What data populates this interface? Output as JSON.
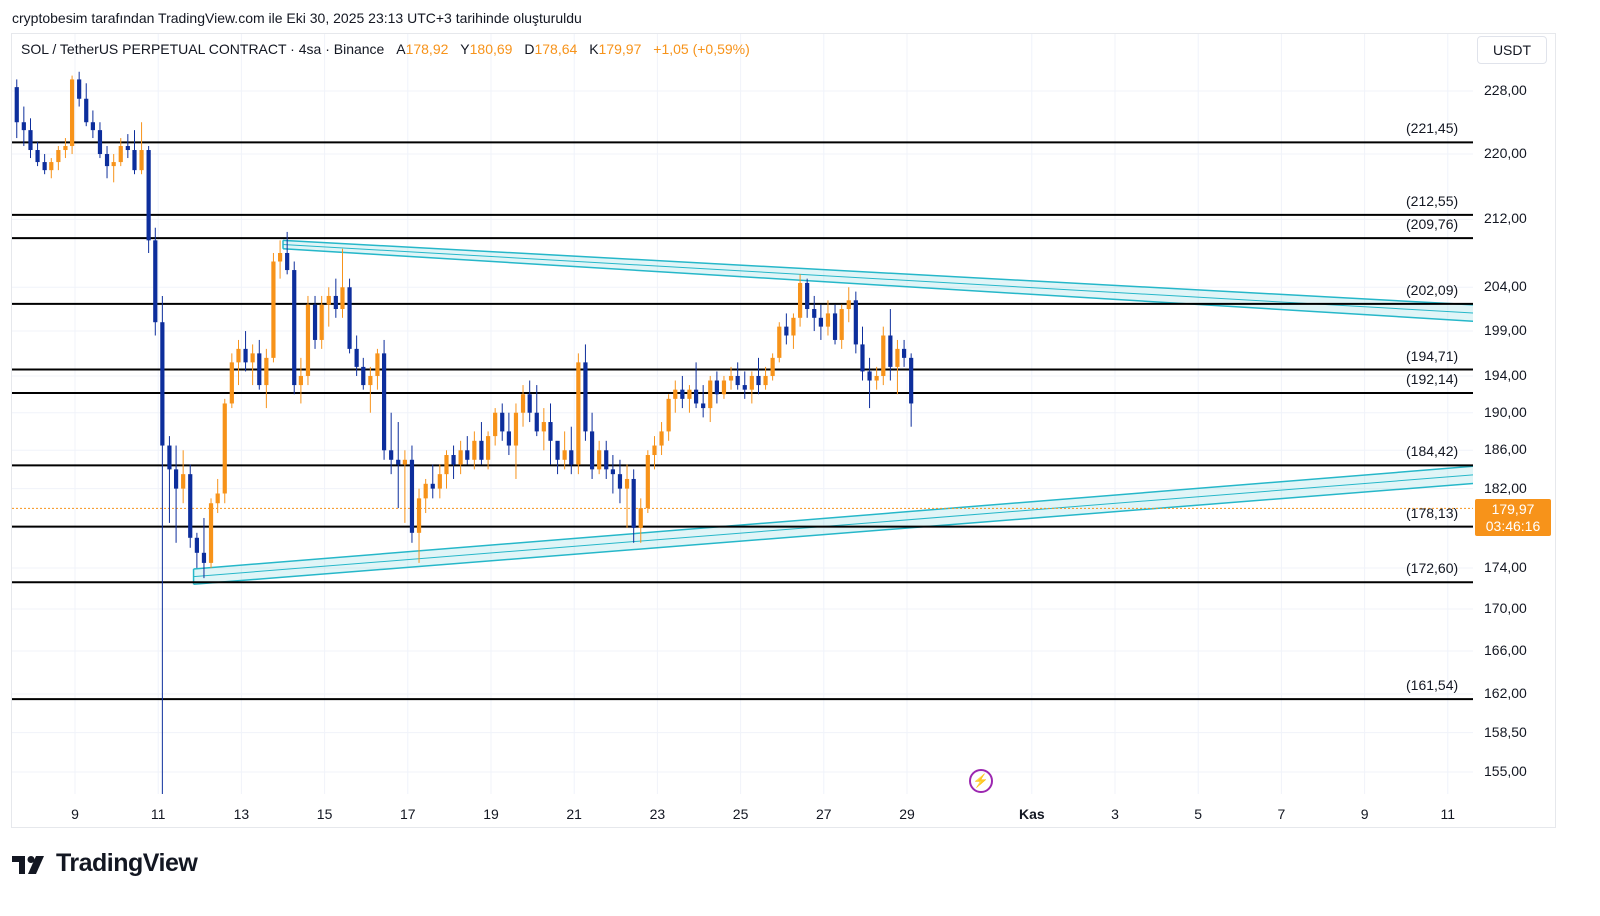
{
  "caption": "cryptobesim tarafından TradingView.com ile Eki 30, 2025 23:13 UTC+3 tarihinde oluşturuldu",
  "legend": {
    "symbol": "SOL / TetherUS PERPETUAL CONTRACT · 4sa · Binance",
    "open_key": "A",
    "open": "178,92",
    "high_key": "Y",
    "high": "180,69",
    "low_key": "D",
    "low": "178,64",
    "close_key": "K",
    "close": "179,97",
    "change": "+1,05 (+0,59%)"
  },
  "currency": "USDT",
  "brand": "TradingView",
  "colors": {
    "up": "#f7931a",
    "down": "#0d2e9c",
    "channel": "#26b7c9",
    "level": "#000000",
    "price": "#f7931a"
  },
  "icons": {
    "event": "lightning-icon",
    "logo": "tradingview-logo-icon"
  },
  "chart_data": {
    "type": "candlestick",
    "symbol": "SOL / TetherUS PERPETUAL CONTRACT",
    "interval": "4sa",
    "exchange": "Binance",
    "y_scale": "log",
    "ylim": [
      152.5,
      233.0
    ],
    "xlim": [
      7.5,
      43.7
    ],
    "y_ticks": [
      "228,00",
      "220,00",
      "212,00",
      "204,00",
      "199,00",
      "194,00",
      "190,00",
      "186,00",
      "182,00",
      "178,00",
      "174,00",
      "170,00",
      "166,00",
      "162,00",
      "158,50",
      "155,00"
    ],
    "y_tick_values": [
      228,
      220,
      212,
      204,
      199,
      194,
      190,
      186,
      182,
      178,
      174,
      170,
      166,
      162,
      158.5,
      155
    ],
    "x_ticks": [
      {
        "label": "9",
        "day": 9
      },
      {
        "label": "11",
        "day": 11
      },
      {
        "label": "13",
        "day": 13
      },
      {
        "label": "15",
        "day": 15
      },
      {
        "label": "17",
        "day": 17
      },
      {
        "label": "19",
        "day": 19
      },
      {
        "label": "21",
        "day": 21
      },
      {
        "label": "23",
        "day": 23
      },
      {
        "label": "25",
        "day": 25
      },
      {
        "label": "27",
        "day": 27
      },
      {
        "label": "29",
        "day": 29
      },
      {
        "label": "Kas",
        "day": 32,
        "bold": true
      },
      {
        "label": "3",
        "day": 34
      },
      {
        "label": "5",
        "day": 36
      },
      {
        "label": "7",
        "day": 38
      },
      {
        "label": "9",
        "day": 40
      },
      {
        "label": "11",
        "day": 42
      }
    ],
    "levels": [
      {
        "label": "(221,45)",
        "value": 221.45
      },
      {
        "label": "(212,55)",
        "value": 212.55
      },
      {
        "label": "(209,76)",
        "value": 209.76
      },
      {
        "label": "(202,09)",
        "value": 202.09
      },
      {
        "label": "(194,71)",
        "value": 194.71
      },
      {
        "label": "(192,14)",
        "value": 192.14
      },
      {
        "label": "(184,42)",
        "value": 184.42
      },
      {
        "label": "(178,13)",
        "value": 178.13
      },
      {
        "label": "(172,60)",
        "value": 172.6
      },
      {
        "label": "(161,54)",
        "value": 161.54
      }
    ],
    "upper_channel": {
      "upper": [
        [
          14.0,
          209.5
        ],
        [
          43.7,
          201.7
        ]
      ],
      "lower": [
        [
          14.0,
          208.5
        ],
        [
          43.7,
          199.8
        ]
      ]
    },
    "lower_channel": {
      "upper": [
        [
          11.85,
          173.9
        ],
        [
          43.7,
          184.7
        ]
      ],
      "lower": [
        [
          11.85,
          172.4
        ],
        [
          43.7,
          182.9
        ]
      ]
    },
    "last_price": {
      "value": "179,97",
      "countdown": "03:46:16",
      "price": 179.97
    },
    "candles": [
      [
        7.6,
        228.5,
        229.5,
        222,
        224
      ],
      [
        7.77,
        224,
        226,
        221,
        223
      ],
      [
        7.93,
        223,
        224.5,
        219.5,
        220.5
      ],
      [
        8.1,
        220.5,
        221.5,
        218.5,
        219
      ],
      [
        8.27,
        219,
        220,
        217.5,
        218
      ],
      [
        8.43,
        218,
        219.5,
        217,
        219
      ],
      [
        8.6,
        219,
        221,
        218,
        220.5
      ],
      [
        8.77,
        220.5,
        222,
        219.5,
        221
      ],
      [
        8.93,
        221,
        230,
        220,
        229.5
      ],
      [
        9.1,
        229.5,
        230.5,
        226,
        227
      ],
      [
        9.27,
        227,
        229,
        223.5,
        224
      ],
      [
        9.43,
        224,
        225.5,
        222,
        223
      ],
      [
        9.6,
        223,
        224,
        219.5,
        220
      ],
      [
        9.77,
        220,
        221,
        217,
        218.5
      ],
      [
        9.93,
        218.5,
        220,
        216.5,
        219
      ],
      [
        10.1,
        219,
        222,
        218.5,
        221
      ],
      [
        10.27,
        221,
        222.5,
        219.5,
        220.5
      ],
      [
        10.43,
        220.5,
        223,
        217.5,
        218
      ],
      [
        10.6,
        218,
        224,
        217.5,
        220.5
      ],
      [
        10.77,
        220.5,
        221,
        208,
        209.5
      ],
      [
        10.93,
        209.5,
        211,
        198.5,
        200
      ],
      [
        11.1,
        200,
        203,
        153,
        186.5
      ],
      [
        11.27,
        186.5,
        187.5,
        178.5,
        184
      ],
      [
        11.43,
        184,
        186.5,
        176.5,
        182
      ],
      [
        11.6,
        182,
        186,
        180.5,
        183.5
      ],
      [
        11.77,
        183.5,
        184.5,
        176,
        177
      ],
      [
        11.93,
        177,
        177.5,
        174,
        175.5
      ],
      [
        12.1,
        175.5,
        179,
        173,
        174.5
      ],
      [
        12.27,
        174.5,
        181,
        174,
        180.5
      ],
      [
        12.43,
        180.5,
        183,
        179.5,
        181.5
      ],
      [
        12.6,
        181.5,
        191.5,
        180.5,
        191
      ],
      [
        12.77,
        191,
        196.5,
        190.5,
        195.5
      ],
      [
        12.93,
        195.5,
        198,
        193,
        197
      ],
      [
        13.1,
        197,
        199,
        194.5,
        195.5
      ],
      [
        13.27,
        195.5,
        197.5,
        193,
        196.5
      ],
      [
        13.43,
        196.5,
        198,
        192.5,
        193
      ],
      [
        13.6,
        193,
        197,
        190.5,
        196
      ],
      [
        13.77,
        196,
        208,
        195.5,
        207
      ],
      [
        13.93,
        207,
        209.5,
        205,
        208
      ],
      [
        14.1,
        208,
        210.5,
        205.5,
        206
      ],
      [
        14.27,
        206,
        207,
        192,
        193
      ],
      [
        14.43,
        193,
        196,
        191,
        194
      ],
      [
        14.6,
        194,
        203,
        193,
        202
      ],
      [
        14.77,
        202,
        203,
        197,
        198
      ],
      [
        14.93,
        198,
        203,
        197,
        202
      ],
      [
        15.1,
        202,
        204,
        199.5,
        203
      ],
      [
        15.27,
        203,
        205,
        200.5,
        201.5
      ],
      [
        15.43,
        201.5,
        208.5,
        200.5,
        204
      ],
      [
        15.6,
        204,
        205,
        196.5,
        197
      ],
      [
        15.77,
        197,
        198.5,
        194,
        195
      ],
      [
        15.93,
        195,
        196,
        192.5,
        193
      ],
      [
        16.1,
        193,
        195,
        190,
        194
      ],
      [
        16.27,
        194,
        197,
        192.5,
        196.5
      ],
      [
        16.43,
        196.5,
        198,
        185,
        186
      ],
      [
        16.6,
        186,
        190,
        183.5,
        185
      ],
      [
        16.77,
        185,
        189,
        180,
        184.5
      ],
      [
        16.93,
        184.5,
        186,
        178.5,
        185
      ],
      [
        17.1,
        185,
        186.5,
        176.5,
        177.5
      ],
      [
        17.27,
        177.5,
        182,
        174.5,
        181
      ],
      [
        17.43,
        181,
        183,
        179.5,
        182.5
      ],
      [
        17.6,
        182.5,
        184.5,
        181,
        182
      ],
      [
        17.77,
        182,
        184.5,
        181,
        183.5
      ],
      [
        17.93,
        183.5,
        186,
        182,
        185.5
      ],
      [
        18.1,
        185.5,
        186.5,
        183,
        184.5
      ],
      [
        18.27,
        184.5,
        187,
        183.5,
        186
      ],
      [
        18.43,
        186,
        187.5,
        184.5,
        185
      ],
      [
        18.6,
        185,
        188,
        184,
        187
      ],
      [
        18.77,
        187,
        189,
        184.5,
        185
      ],
      [
        18.93,
        185,
        188,
        184,
        187.5
      ],
      [
        19.1,
        187.5,
        190.5,
        186.5,
        190
      ],
      [
        19.27,
        190,
        191,
        187,
        188
      ],
      [
        19.43,
        188,
        190,
        185.5,
        186.5
      ],
      [
        19.6,
        186.5,
        191,
        183,
        190
      ],
      [
        19.77,
        190,
        193,
        188.5,
        192
      ],
      [
        19.93,
        192,
        193.5,
        189,
        190
      ],
      [
        20.1,
        190,
        193,
        187.5,
        188
      ],
      [
        20.27,
        188,
        190.5,
        186,
        189
      ],
      [
        20.43,
        189,
        191,
        184.5,
        187
      ],
      [
        20.6,
        187,
        186.5,
        183.5,
        185
      ],
      [
        20.77,
        185,
        188,
        184,
        186
      ],
      [
        20.93,
        186,
        188.5,
        183.5,
        184.5
      ],
      [
        21.1,
        184.5,
        196.5,
        183.5,
        195.5
      ],
      [
        21.27,
        195.5,
        197.5,
        187,
        188
      ],
      [
        21.43,
        188,
        190,
        183,
        184
      ],
      [
        21.6,
        184,
        187,
        183.5,
        186
      ],
      [
        21.77,
        186,
        187,
        183,
        184
      ],
      [
        21.93,
        184,
        185.5,
        181.5,
        183.5
      ],
      [
        22.1,
        183.5,
        185,
        180.5,
        182
      ],
      [
        22.27,
        182,
        184.5,
        178,
        183
      ],
      [
        22.43,
        183,
        184,
        176.5,
        178
      ],
      [
        22.6,
        178,
        181,
        176.5,
        180
      ],
      [
        22.77,
        180,
        186,
        179.5,
        185.5
      ],
      [
        22.93,
        185.5,
        187.5,
        184,
        186.5
      ],
      [
        23.1,
        186.5,
        189,
        185.5,
        188
      ],
      [
        23.27,
        188,
        192,
        187,
        191.5
      ],
      [
        23.43,
        191.5,
        193.5,
        190,
        192.5
      ],
      [
        23.6,
        192.5,
        194,
        190.5,
        191.5
      ],
      [
        23.77,
        191.5,
        193,
        190,
        192.5
      ],
      [
        23.93,
        192.5,
        195.5,
        190.5,
        191
      ],
      [
        24.1,
        191,
        193,
        189.5,
        190.5
      ],
      [
        24.27,
        190.5,
        194,
        189,
        193.5
      ],
      [
        24.43,
        193.5,
        194.5,
        191,
        192
      ],
      [
        24.6,
        192,
        194,
        191.5,
        193.5
      ],
      [
        24.77,
        193.5,
        195,
        192.5,
        194
      ],
      [
        24.93,
        194,
        195.5,
        192.5,
        193
      ],
      [
        25.1,
        193,
        194.5,
        191.5,
        192.5
      ],
      [
        25.27,
        192.5,
        194.5,
        191,
        194
      ],
      [
        25.43,
        194,
        196,
        192,
        193
      ],
      [
        25.6,
        193,
        195,
        192.5,
        194
      ],
      [
        25.77,
        194,
        196.5,
        193.5,
        196
      ],
      [
        25.93,
        196,
        200,
        195.5,
        199.5
      ],
      [
        26.1,
        199.5,
        201,
        197.5,
        198.5
      ],
      [
        26.27,
        198.5,
        201,
        197,
        200.5
      ],
      [
        26.43,
        200.5,
        205.5,
        199.5,
        204.5
      ],
      [
        26.6,
        204.5,
        205,
        200.5,
        201.5
      ],
      [
        26.77,
        201.5,
        203,
        199,
        200.5
      ],
      [
        26.93,
        200.5,
        202,
        198,
        199.5
      ],
      [
        27.1,
        199.5,
        202.5,
        198.5,
        201
      ],
      [
        27.27,
        201,
        202,
        197.5,
        198
      ],
      [
        27.43,
        198,
        202,
        197,
        201.5
      ],
      [
        27.6,
        201.5,
        204,
        200,
        202.5
      ],
      [
        27.77,
        202.5,
        203.5,
        196.5,
        197.5
      ],
      [
        27.93,
        197.5,
        199.5,
        193.5,
        194.5
      ],
      [
        28.1,
        194.5,
        196,
        190.5,
        193.5
      ],
      [
        28.27,
        193.5,
        195,
        192.5,
        194
      ],
      [
        28.43,
        194,
        199.5,
        193,
        198.5
      ],
      [
        28.6,
        198.5,
        201.5,
        193.5,
        195
      ],
      [
        28.77,
        195,
        198,
        192,
        197
      ],
      [
        28.93,
        197,
        198,
        195,
        196
      ],
      [
        29.1,
        196,
        196.5,
        188.5,
        191
      ]
    ]
  }
}
